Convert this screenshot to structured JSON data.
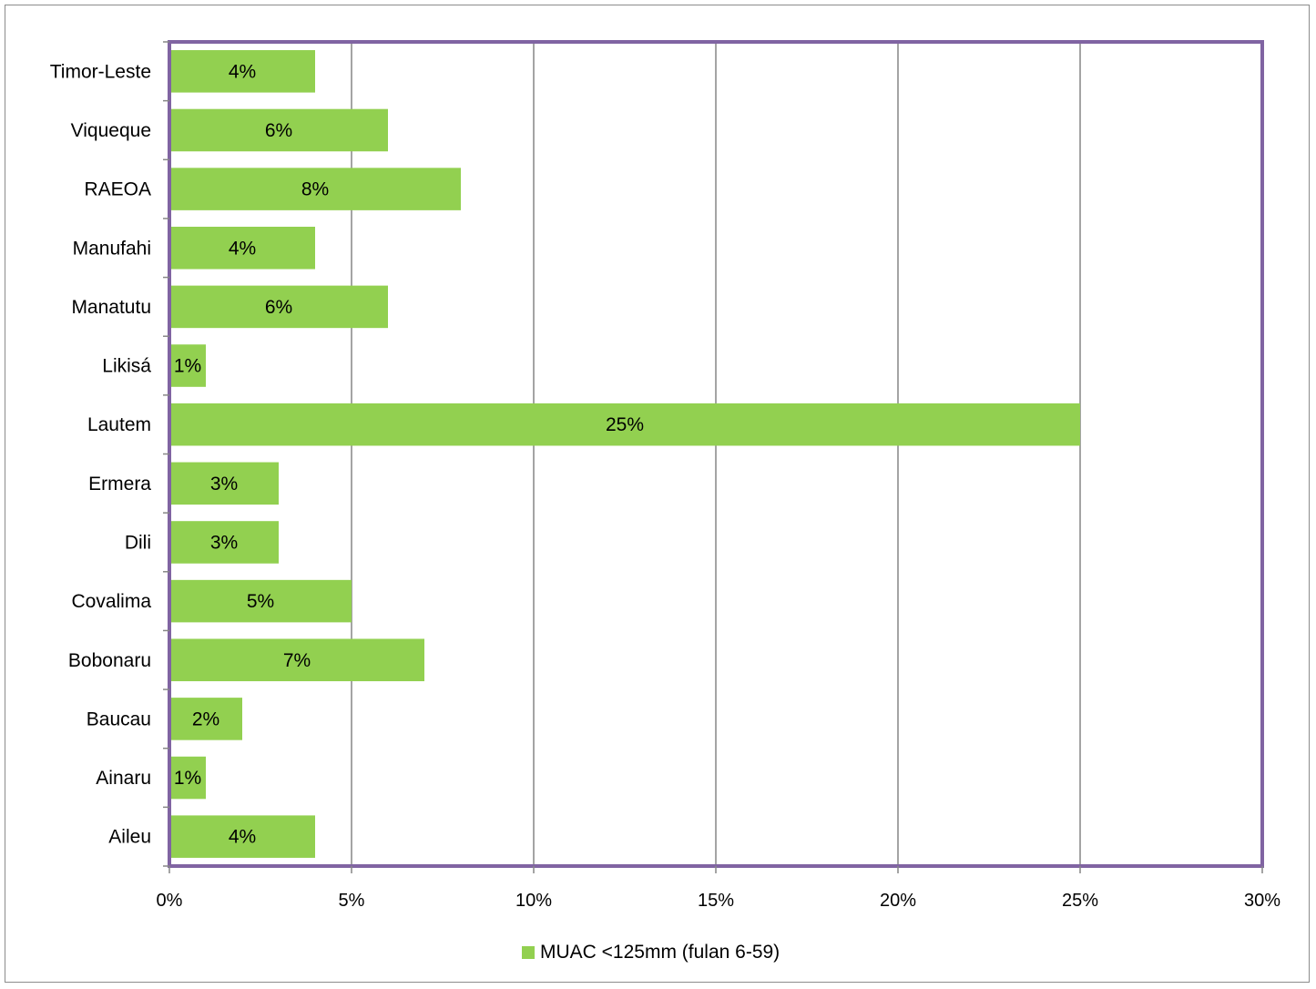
{
  "chart_data": {
    "type": "bar",
    "orientation": "horizontal",
    "categories": [
      "Timor-Leste",
      "Viqueque",
      "RAEOA",
      "Manufahi",
      "Manatutu",
      "Likisá",
      "Lautem",
      "Ermera",
      "Dili",
      "Covalima",
      "Bobonaru",
      "Baucau",
      "Ainaru",
      "Aileu"
    ],
    "series": [
      {
        "name": "MUAC <125mm (fulan 6-59)",
        "color": "#92d050",
        "values": [
          4,
          6,
          8,
          4,
          6,
          1,
          25,
          3,
          3,
          5,
          7,
          2,
          1,
          4
        ],
        "labels": [
          "4%",
          "6%",
          "8%",
          "4%",
          "6%",
          "1%",
          "25%",
          "3%",
          "3%",
          "5%",
          "7%",
          "2%",
          "1%",
          "4%"
        ]
      }
    ],
    "xlim": [
      0,
      30
    ],
    "xticks": [
      0,
      5,
      10,
      15,
      20,
      25,
      30
    ],
    "xtick_labels": [
      "0%",
      "5%",
      "10%",
      "15%",
      "20%",
      "25%",
      "30%"
    ],
    "grid": "vertical",
    "legend_position": "bottom-center",
    "plot_border_color": "#8064a2",
    "gridline_color": "#868686"
  }
}
